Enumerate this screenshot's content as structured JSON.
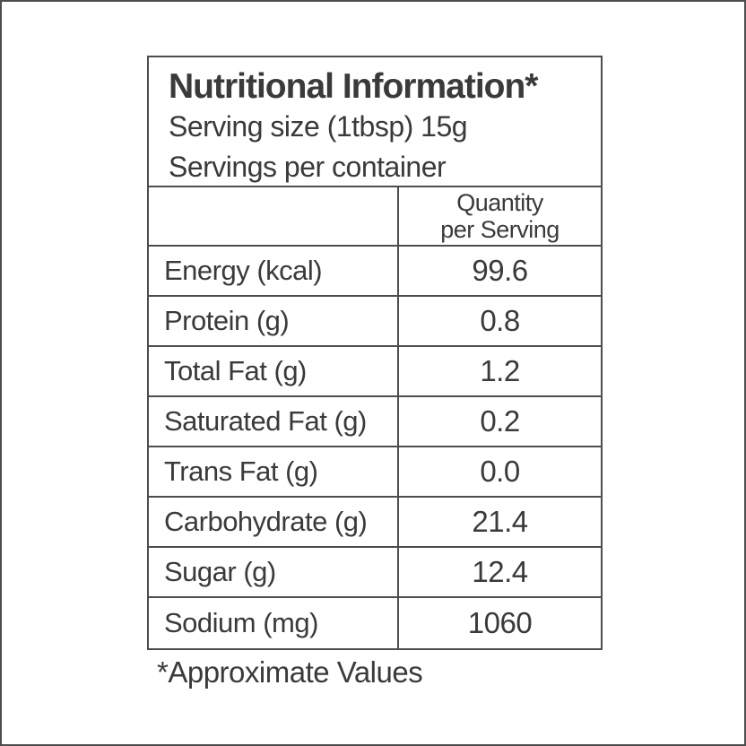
{
  "label": {
    "title": "Nutritional Information*",
    "serving_size": "Serving size (1tbsp) 15g",
    "servings_per_container": "Servings per container",
    "quantity_header": {
      "line1": "Quantity",
      "line2": "per Serving"
    },
    "rows": [
      {
        "name": "Energy (kcal)",
        "value": "99.6"
      },
      {
        "name": "Protein (g)",
        "value": "0.8"
      },
      {
        "name": "Total Fat (g)",
        "value": "1.2"
      },
      {
        "name": "Saturated Fat (g)",
        "value": "0.2"
      },
      {
        "name": "Trans Fat (g)",
        "value": "0.0"
      },
      {
        "name": "Carbohydrate (g)",
        "value": "21.4"
      },
      {
        "name": "Sugar (g)",
        "value": "12.4"
      },
      {
        "name": "Sodium (mg)",
        "value": "1060"
      }
    ],
    "footnote": "*Approximate Values",
    "colors": {
      "background": "#ffffff",
      "text": "#3a3a3a",
      "border": "#4d4d4d"
    }
  }
}
